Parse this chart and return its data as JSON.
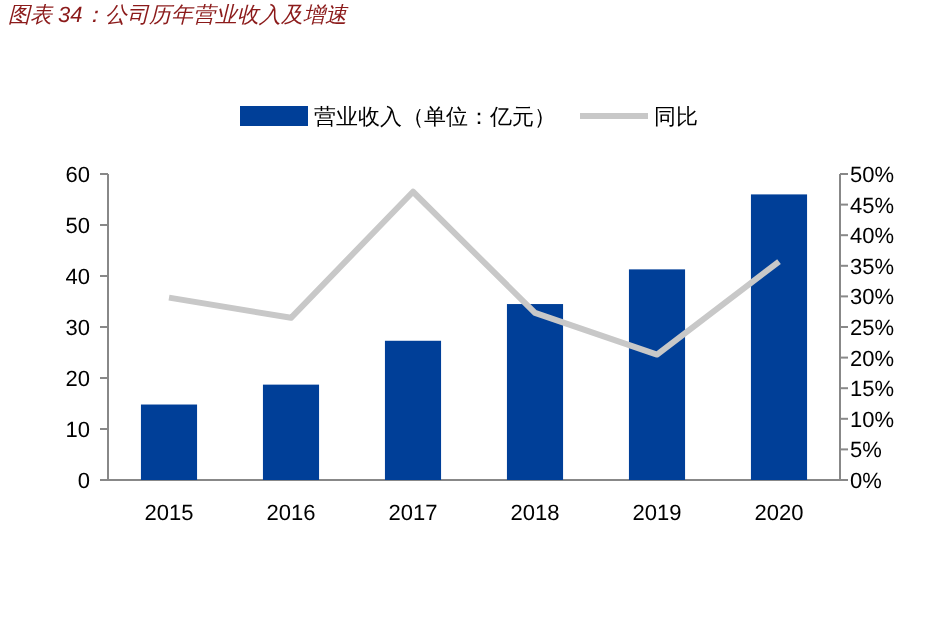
{
  "chart_data": {
    "type": "bar",
    "title": "图表 34：公司历年营业收入及增速",
    "categories": [
      "2015",
      "2016",
      "2017",
      "2018",
      "2019",
      "2020"
    ],
    "series": [
      {
        "name": "营业收入（单位：亿元）",
        "color": "#003f98",
        "values": [
          14.8,
          18.7,
          27.3,
          34.5,
          41.3,
          56.0
        ]
      },
      {
        "name": "同比",
        "type": "line",
        "axis": "y2",
        "color": "#c8c8c8",
        "values": [
          29.8,
          26.5,
          47.1,
          27.3,
          20.5,
          35.7
        ]
      }
    ],
    "ylim": [
      0,
      60
    ],
    "yticks": [
      0,
      10,
      20,
      30,
      40,
      50,
      60
    ],
    "y2lim": [
      0,
      50
    ],
    "y2ticks": [
      {
        "value": 0,
        "label": "0%"
      },
      {
        "value": 5,
        "label": "5%"
      },
      {
        "value": 10,
        "label": "10%"
      },
      {
        "value": 15,
        "label": "15%"
      },
      {
        "value": 20,
        "label": "20%"
      },
      {
        "value": 25,
        "label": "25%"
      },
      {
        "value": 30,
        "label": "30%"
      },
      {
        "value": 35,
        "label": "35%"
      },
      {
        "value": 40,
        "label": "40%"
      },
      {
        "value": 45,
        "label": "45%"
      },
      {
        "value": 50,
        "label": "50%"
      }
    ],
    "grid": false,
    "legend": "top",
    "marker": "none",
    "line_style": "solid"
  }
}
